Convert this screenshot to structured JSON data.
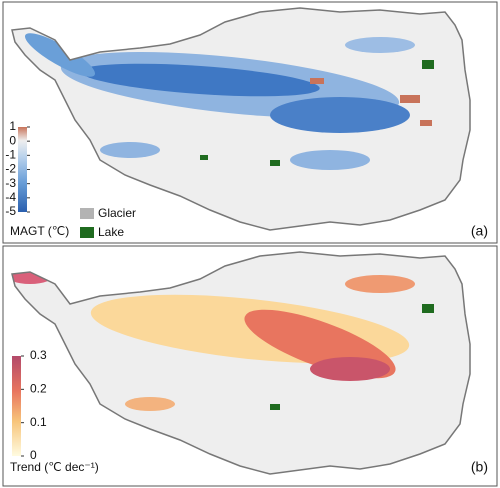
{
  "panels": [
    {
      "label": "(a)",
      "colorbar": {
        "title": "MAGT (℃)",
        "ticks": [
          1,
          0,
          -1,
          -2,
          -3,
          -4,
          -5
        ]
      },
      "legend": [
        {
          "label": "Glacier",
          "color": "#b3b3b3"
        },
        {
          "label": "Lake",
          "color": "#1f6b1f"
        }
      ]
    },
    {
      "label": "(b)",
      "colorbar": {
        "title": "Trend (℃ dec⁻¹)",
        "ticks": [
          0.3,
          0.2,
          0.1,
          0
        ]
      }
    }
  ]
}
